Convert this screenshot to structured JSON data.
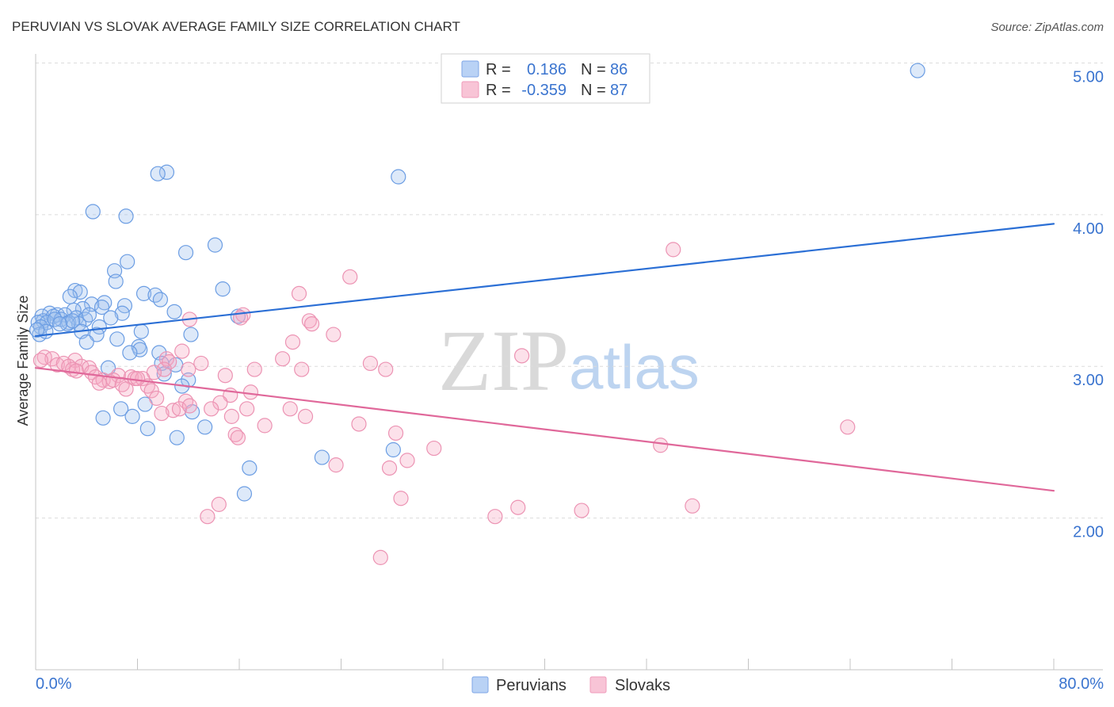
{
  "chart_data": {
    "type": "scatter",
    "title": "PERUVIAN VS SLOVAK AVERAGE FAMILY SIZE CORRELATION CHART",
    "source": "Source: ZipAtlas.com",
    "watermark": {
      "zip": "ZIP",
      "atlas": "atlas"
    },
    "ylabel": "Average Family Size",
    "xlim": [
      0,
      80
    ],
    "ylim": [
      1.0,
      5.06
    ],
    "grid": true,
    "y_ticks": [
      {
        "value": 5,
        "label": "5.00"
      },
      {
        "value": 4,
        "label": "4.00"
      },
      {
        "value": 3,
        "label": "3.00"
      },
      {
        "value": 2,
        "label": "2.00"
      }
    ],
    "x_tick_values": [
      0,
      8,
      16,
      24,
      32,
      40,
      48,
      56,
      64,
      72,
      80
    ],
    "x_tick_labels": [
      {
        "value": 0,
        "label": "0.0%"
      },
      {
        "value": 80,
        "label": "80.0%"
      }
    ],
    "legend": {
      "r_label": "R =",
      "n_label": "N ="
    },
    "series": [
      {
        "name": "Peruvians",
        "r": "0.186",
        "n": "86",
        "fill": "#9fc1ef",
        "stroke": "#6b9de3",
        "line_color": "#2b6fd5",
        "swatch_fill": "#b9d2f5",
        "swatch_stroke": "#7ea6e6",
        "trend": [
          [
            0,
            3.2
          ],
          [
            80,
            3.94
          ]
        ],
        "points": [
          [
            69.3,
            4.95
          ],
          [
            28.5,
            4.25
          ],
          [
            10.3,
            4.28
          ],
          [
            9.6,
            4.27
          ],
          [
            4.5,
            4.02
          ],
          [
            7.1,
            3.99
          ],
          [
            14.1,
            3.8
          ],
          [
            11.8,
            3.75
          ],
          [
            7.2,
            3.69
          ],
          [
            6.2,
            3.63
          ],
          [
            6.3,
            3.56
          ],
          [
            14.7,
            3.51
          ],
          [
            3.1,
            3.5
          ],
          [
            3.5,
            3.49
          ],
          [
            8.5,
            3.48
          ],
          [
            9.4,
            3.47
          ],
          [
            2.7,
            3.46
          ],
          [
            9.8,
            3.44
          ],
          [
            5.4,
            3.42
          ],
          [
            7.0,
            3.4
          ],
          [
            4.4,
            3.41
          ],
          [
            5.2,
            3.39
          ],
          [
            3.7,
            3.38
          ],
          [
            3.0,
            3.37
          ],
          [
            10.9,
            3.36
          ],
          [
            1.1,
            3.35
          ],
          [
            1.7,
            3.34
          ],
          [
            2.3,
            3.34
          ],
          [
            6.8,
            3.35
          ],
          [
            15.9,
            3.33
          ],
          [
            0.5,
            3.33
          ],
          [
            1.4,
            3.33
          ],
          [
            3.2,
            3.32
          ],
          [
            5.9,
            3.32
          ],
          [
            3.9,
            3.31
          ],
          [
            2.0,
            3.31
          ],
          [
            0.6,
            3.3
          ],
          [
            0.2,
            3.29
          ],
          [
            2.6,
            3.29
          ],
          [
            0.9,
            3.29
          ],
          [
            3.4,
            3.28
          ],
          [
            5.0,
            3.26
          ],
          [
            2.5,
            3.28
          ],
          [
            0.4,
            3.26
          ],
          [
            3.6,
            3.23
          ],
          [
            8.3,
            3.23
          ],
          [
            4.8,
            3.21
          ],
          [
            12.2,
            3.21
          ],
          [
            0.3,
            3.21
          ],
          [
            6.4,
            3.18
          ],
          [
            4.0,
            3.16
          ],
          [
            8.1,
            3.13
          ],
          [
            8.2,
            3.11
          ],
          [
            9.7,
            3.09
          ],
          [
            7.4,
            3.09
          ],
          [
            9.9,
            3.02
          ],
          [
            11.0,
            3.01
          ],
          [
            5.7,
            2.99
          ],
          [
            10.1,
            2.95
          ],
          [
            12.0,
            2.91
          ],
          [
            11.5,
            2.87
          ],
          [
            6.7,
            2.72
          ],
          [
            8.6,
            2.75
          ],
          [
            12.3,
            2.7
          ],
          [
            5.3,
            2.66
          ],
          [
            7.6,
            2.67
          ],
          [
            13.3,
            2.6
          ],
          [
            8.8,
            2.59
          ],
          [
            11.1,
            2.53
          ],
          [
            28.1,
            2.45
          ],
          [
            22.5,
            2.4
          ],
          [
            16.8,
            2.33
          ],
          [
            16.4,
            2.16
          ],
          [
            0.8,
            3.23
          ],
          [
            1.5,
            3.31
          ],
          [
            2.9,
            3.3
          ],
          [
            4.2,
            3.34
          ],
          [
            1.9,
            3.28
          ],
          [
            0.1,
            3.24
          ]
        ]
      },
      {
        "name": "Slovaks",
        "r": "-0.359",
        "n": "87",
        "fill": "#f5a9c2",
        "stroke": "#ec93b3",
        "line_color": "#e0689a",
        "swatch_fill": "#f8c4d6",
        "swatch_stroke": "#ef9bbb",
        "trend": [
          [
            0,
            2.99
          ],
          [
            80,
            2.18
          ]
        ],
        "points": [
          [
            50.1,
            3.77
          ],
          [
            24.7,
            3.59
          ],
          [
            20.7,
            3.48
          ],
          [
            16.3,
            3.34
          ],
          [
            16.1,
            3.32
          ],
          [
            12.1,
            3.31
          ],
          [
            21.5,
            3.3
          ],
          [
            21.7,
            3.28
          ],
          [
            23.4,
            3.21
          ],
          [
            20.2,
            3.16
          ],
          [
            11.5,
            3.1
          ],
          [
            38.2,
            3.07
          ],
          [
            19.4,
            3.05
          ],
          [
            0.7,
            3.06
          ],
          [
            1.3,
            3.05
          ],
          [
            3.1,
            3.04
          ],
          [
            10.3,
            3.05
          ],
          [
            10.5,
            3.03
          ],
          [
            13.0,
            3.02
          ],
          [
            26.3,
            3.02
          ],
          [
            1.7,
            3.01
          ],
          [
            2.2,
            3.02
          ],
          [
            3.6,
            3.0
          ],
          [
            2.6,
            3.0
          ],
          [
            4.2,
            2.99
          ],
          [
            10.1,
            2.98
          ],
          [
            17.2,
            2.98
          ],
          [
            20.9,
            2.98
          ],
          [
            27.5,
            2.98
          ],
          [
            2.9,
            2.98
          ],
          [
            3.2,
            2.97
          ],
          [
            4.4,
            2.96
          ],
          [
            9.3,
            2.96
          ],
          [
            14.9,
            2.94
          ],
          [
            6.5,
            2.94
          ],
          [
            4.7,
            2.93
          ],
          [
            7.5,
            2.93
          ],
          [
            7.8,
            2.92
          ],
          [
            8.4,
            2.92
          ],
          [
            5.3,
            2.91
          ],
          [
            5.8,
            2.9
          ],
          [
            6.1,
            2.91
          ],
          [
            5.0,
            2.89
          ],
          [
            6.8,
            2.88
          ],
          [
            8.8,
            2.87
          ],
          [
            7.1,
            2.85
          ],
          [
            9.1,
            2.84
          ],
          [
            16.9,
            2.83
          ],
          [
            15.3,
            2.81
          ],
          [
            9.5,
            2.79
          ],
          [
            11.8,
            2.77
          ],
          [
            14.5,
            2.76
          ],
          [
            16.6,
            2.72
          ],
          [
            20.0,
            2.72
          ],
          [
            10.8,
            2.71
          ],
          [
            11.3,
            2.72
          ],
          [
            13.8,
            2.72
          ],
          [
            9.9,
            2.69
          ],
          [
            15.4,
            2.67
          ],
          [
            21.2,
            2.67
          ],
          [
            18.0,
            2.61
          ],
          [
            25.4,
            2.62
          ],
          [
            63.8,
            2.6
          ],
          [
            15.7,
            2.55
          ],
          [
            15.9,
            2.53
          ],
          [
            28.3,
            2.56
          ],
          [
            49.1,
            2.48
          ],
          [
            31.3,
            2.46
          ],
          [
            29.2,
            2.38
          ],
          [
            23.6,
            2.35
          ],
          [
            27.8,
            2.33
          ],
          [
            28.7,
            2.13
          ],
          [
            14.4,
            2.09
          ],
          [
            37.9,
            2.07
          ],
          [
            51.6,
            2.08
          ],
          [
            42.9,
            2.05
          ],
          [
            36.1,
            2.01
          ],
          [
            13.5,
            2.01
          ],
          [
            27.1,
            1.74
          ],
          [
            12.0,
            2.98
          ],
          [
            12.1,
            2.74
          ],
          [
            0.4,
            3.04
          ],
          [
            8.0,
            2.92
          ]
        ]
      }
    ]
  },
  "colors": {
    "tick_label": "#3a74cf",
    "text": "#333333",
    "grid": "#dcdcdc",
    "axis": "#c4c4c4"
  }
}
